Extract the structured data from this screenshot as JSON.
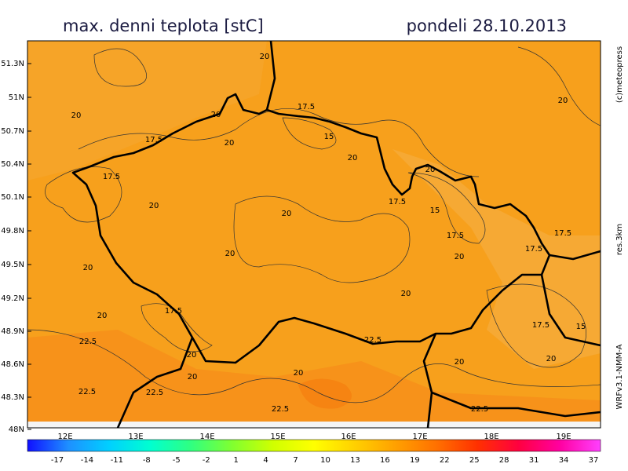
{
  "header": {
    "title": "max. denni teplota [stC]",
    "date": "pondeli 28.10.2013"
  },
  "side_texts": [
    "(c)meteopress",
    "res.3km",
    "WRFv3.1-NMM-A"
  ],
  "lat_labels": [
    "51.3N",
    "51N",
    "50.7N",
    "50.4N",
    "50.1N",
    "49.8N",
    "49.5N",
    "49.2N",
    "48.9N",
    "48.6N",
    "48.3N",
    "48N"
  ],
  "lon_labels": [
    "12E",
    "13E",
    "14E",
    "15E",
    "16E",
    "17E",
    "18E",
    "19E"
  ],
  "contour_labels": [
    "20",
    "17.5",
    "20",
    "20",
    "20",
    "20",
    "17.5",
    "15",
    "20",
    "17.5",
    "20",
    "20",
    "17.5",
    "15",
    "20",
    "17.5",
    "17.5",
    "20",
    "17.5",
    "20",
    "20",
    "20",
    "20",
    "17.5",
    "17.5",
    "15",
    "22.5",
    "22.5",
    "20",
    "20",
    "20",
    "20",
    "20",
    "22.5",
    "22.5",
    "22.5",
    "22.5"
  ],
  "colorbar": {
    "ticks": [
      "-17",
      "-14",
      "-11",
      "-8",
      "-5",
      "-2",
      "1",
      "4",
      "7",
      "10",
      "13",
      "16",
      "19",
      "22",
      "25",
      "28",
      "31",
      "34",
      "37"
    ],
    "colors": [
      "#1010ff",
      "#1e90ff",
      "#00d0ff",
      "#00ffd0",
      "#30ff80",
      "#80ff30",
      "#d0ff00",
      "#ffff00",
      "#ffd000",
      "#ffa000",
      "#ff7000",
      "#ff3000",
      "#ff0040",
      "#ff00a0",
      "#ff40ff"
    ]
  }
}
